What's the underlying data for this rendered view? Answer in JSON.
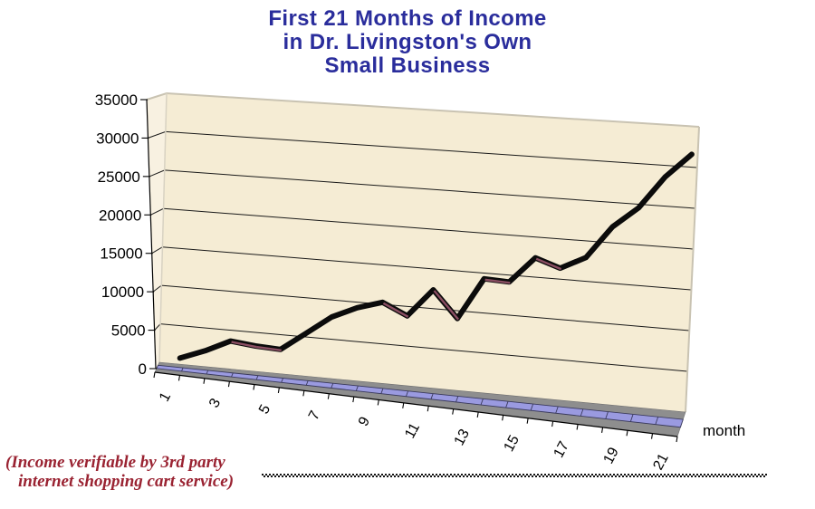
{
  "title": {
    "lines": [
      "First 21 Months of Income",
      "in Dr. Livingston's Own",
      "Small Business"
    ],
    "color": "#2A2D9C"
  },
  "chart_data": {
    "type": "line",
    "style": "excel-3d-ribbon",
    "title": "First 21 Months of Income in Dr. Livingston's Own Small Business",
    "categories": [
      1,
      2,
      3,
      4,
      5,
      6,
      7,
      8,
      9,
      10,
      11,
      12,
      13,
      14,
      15,
      16,
      17,
      18,
      19,
      20,
      21
    ],
    "series": [
      {
        "name": "Income",
        "values": [
          1500,
          2800,
          4400,
          4100,
          4000,
          6400,
          8800,
          10300,
          11300,
          9900,
          13500,
          10200,
          15500,
          15400,
          18700,
          17700,
          19300,
          23400,
          26000,
          30100,
          33100
        ],
        "line_color": "#0b0b0b",
        "side_color": "#8A4E62"
      }
    ],
    "xlabel": "month",
    "ylabel": "",
    "ylim": [
      0,
      35000
    ],
    "ytick_step": 5000,
    "ytick_labels": [
      "0",
      "5000",
      "10000",
      "15000",
      "20000",
      "25000",
      "30000",
      "35000"
    ],
    "xtick_labels_shown": [
      "1",
      "3",
      "5",
      "7",
      "9",
      "11",
      "13",
      "15",
      "17",
      "19",
      "21"
    ],
    "grid": true,
    "legend_position": "none",
    "wall_color": "#F5ECD4",
    "side_wall_color": "#F8F1E1",
    "floor_color": "#8E8E8E",
    "floor_edge_color": "#6F6F6F",
    "category_strip_color": "#9A9AE0",
    "category_strip_edge_color": "#3A3A5C",
    "gridline_color": "#1A1A1A",
    "axis_color": "#000000",
    "wall_edge_color": "#C9C3B2"
  },
  "annotation": {
    "lines": [
      "(Income verifiable by 3rd party",
      "internet shopping cart service)"
    ],
    "color": "#9A2332"
  }
}
